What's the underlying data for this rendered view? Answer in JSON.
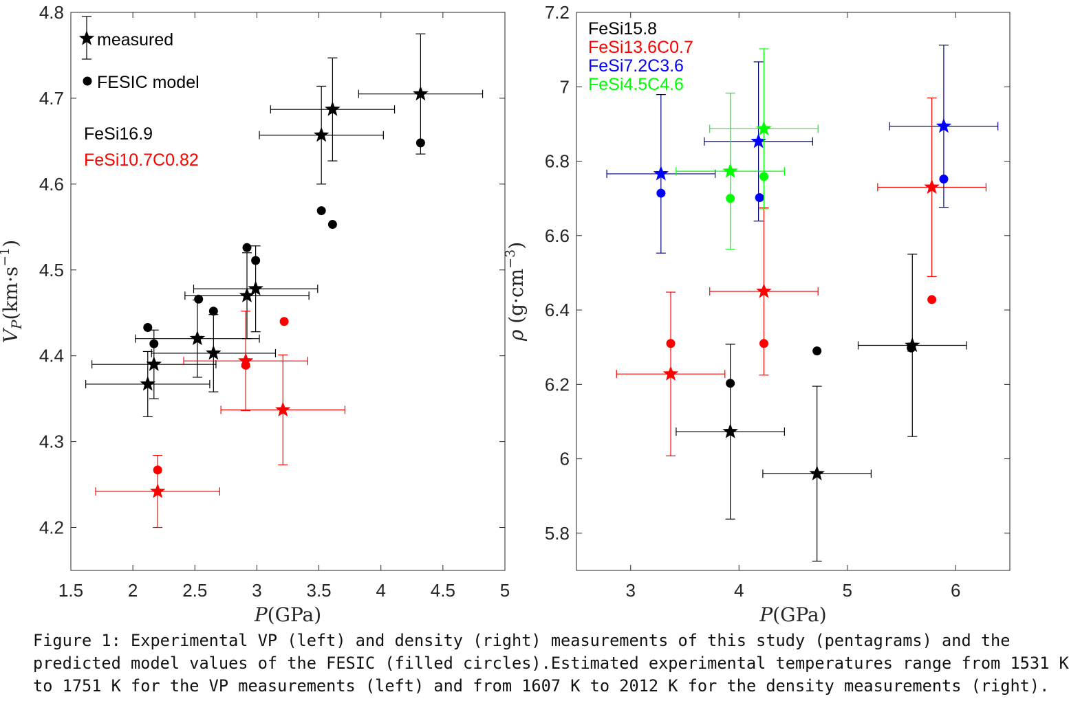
{
  "caption": {
    "line1": "Figure 1: Experimental VP (left) and density (right) measurements of this study (pentagrams) and the",
    "line2": "predicted model values of the FESIC (filled circles).Estimated experimental temperatures range from 1531 K",
    "line3": "to 1751 K for the VP measurements (left) and from 1607 K to 2012 K for the density measurements (right)."
  },
  "colors": {
    "FeSi16.9": "#000000",
    "FeSi10.7C0.82": "#ff0000",
    "FeSi15.8": "#000000",
    "FeSi13.6C0.7": "#ff0000",
    "FeSi7.2C3.6": "#0000ff",
    "FeSi4.5C4.6": "#00ff00",
    "FeSi7.2C3.6_errorbar": "#00007f"
  },
  "chart_data": [
    {
      "type": "scatter",
      "title": "",
      "xlabel": "P(GPa)",
      "ylabel": "V_P (km·s^-1)",
      "xlim": [
        1.5,
        5
      ],
      "ylim": [
        4.15,
        4.8
      ],
      "xticks": [
        1.5,
        2,
        2.5,
        3,
        3.5,
        4,
        4.5,
        5
      ],
      "yticks": [
        4.2,
        4.3,
        4.4,
        4.5,
        4.6,
        4.7,
        4.8
      ],
      "xtick_labels": [
        "1.5",
        "2",
        "2.5",
        "3",
        "3.5",
        "4",
        "4.5",
        "5"
      ],
      "ytick_labels": [
        "4.2",
        "4.3",
        "4.4",
        "4.5",
        "4.6",
        "4.7",
        "4.8"
      ],
      "grid": false,
      "legend": {
        "placement": "top-left",
        "markers": [
          {
            "symbol": "star",
            "label": "measured"
          },
          {
            "symbol": "circle",
            "label": "FESIC model"
          }
        ],
        "series_labels": [
          "FeSi16.9",
          "FeSi10.7C0.82"
        ]
      },
      "series": [
        {
          "name": "FeSi16.9",
          "measured": [
            {
              "x": 2.12,
              "y": 4.367,
              "xerr": 0.5,
              "yerr": 0.038
            },
            {
              "x": 2.17,
              "y": 4.39,
              "xerr": 0.5,
              "yerr": 0.04
            },
            {
              "x": 2.52,
              "y": 4.42,
              "xerr": 0.5,
              "yerr": 0.045
            },
            {
              "x": 2.65,
              "y": 4.403,
              "xerr": 0.5,
              "yerr": 0.045
            },
            {
              "x": 2.92,
              "y": 4.47,
              "xerr": 0.5,
              "yerr": 0.05
            },
            {
              "x": 2.99,
              "y": 4.478,
              "xerr": 0.5,
              "yerr": 0.05
            },
            {
              "x": 3.52,
              "y": 4.657,
              "xerr": 0.5,
              "yerr": 0.057
            },
            {
              "x": 3.61,
              "y": 4.687,
              "xerr": 0.5,
              "yerr": 0.06
            },
            {
              "x": 4.32,
              "y": 4.705,
              "xerr": 0.5,
              "yerr": 0.07
            }
          ],
          "model": [
            {
              "x": 2.12,
              "y": 4.433
            },
            {
              "x": 2.17,
              "y": 4.414
            },
            {
              "x": 2.53,
              "y": 4.466
            },
            {
              "x": 2.65,
              "y": 4.452
            },
            {
              "x": 2.92,
              "y": 4.526
            },
            {
              "x": 2.99,
              "y": 4.511
            },
            {
              "x": 3.52,
              "y": 4.569
            },
            {
              "x": 3.61,
              "y": 4.553
            },
            {
              "x": 4.32,
              "y": 4.648
            }
          ]
        },
        {
          "name": "FeSi10.7C0.82",
          "measured": [
            {
              "x": 2.2,
              "y": 4.242,
              "xerr": 0.5,
              "yerr": 0.042
            },
            {
              "x": 2.91,
              "y": 4.394,
              "xerr": 0.5,
              "yerr": 0.058
            },
            {
              "x": 3.21,
              "y": 4.337,
              "xerr": 0.5,
              "yerr": 0.064
            }
          ],
          "model": [
            {
              "x": 2.2,
              "y": 4.267
            },
            {
              "x": 2.91,
              "y": 4.389
            },
            {
              "x": 3.22,
              "y": 4.44
            }
          ]
        }
      ]
    },
    {
      "type": "scatter",
      "title": "",
      "xlabel": "P(GPa)",
      "ylabel": "ρ (g·cm^-3)",
      "xlim": [
        2.5,
        6.5
      ],
      "ylim": [
        5.7,
        7.2
      ],
      "xticks": [
        3,
        4,
        5,
        6
      ],
      "yticks": [
        5.8,
        6,
        6.2,
        6.4,
        6.6,
        6.8,
        7,
        7.2
      ],
      "xtick_labels": [
        "3",
        "4",
        "5",
        "6"
      ],
      "ytick_labels": [
        "5.8",
        "6",
        "6.2",
        "6.4",
        "6.6",
        "6.8",
        "7",
        "7.2"
      ],
      "grid": false,
      "legend": {
        "placement": "top-left",
        "series_labels": [
          "FeSi15.8",
          "FeSi13.6C0.7",
          "FeSi7.2C3.6",
          "FeSi4.5C4.6"
        ]
      },
      "series": [
        {
          "name": "FeSi15.8",
          "measured": [
            {
              "x": 3.92,
              "y": 6.073,
              "xerr": 0.5,
              "yerr": 0.235
            },
            {
              "x": 4.72,
              "y": 5.96,
              "xerr": 0.5,
              "yerr": 0.235
            },
            {
              "x": 5.6,
              "y": 6.305,
              "xerr": 0.5,
              "yerr": 0.245
            }
          ],
          "model": [
            {
              "x": 3.92,
              "y": 6.203
            },
            {
              "x": 4.72,
              "y": 6.29
            },
            {
              "x": 5.59,
              "y": 6.298
            }
          ]
        },
        {
          "name": "FeSi13.6C0.7",
          "measured": [
            {
              "x": 3.37,
              "y": 6.228,
              "xerr": 0.5,
              "yerr": 0.22
            },
            {
              "x": 4.23,
              "y": 6.45,
              "xerr": 0.5,
              "yerr": 0.225
            },
            {
              "x": 5.78,
              "y": 6.73,
              "xerr": 0.5,
              "yerr": 0.24
            }
          ],
          "model": [
            {
              "x": 3.37,
              "y": 6.31
            },
            {
              "x": 4.23,
              "y": 6.31
            },
            {
              "x": 5.78,
              "y": 6.428
            }
          ]
        },
        {
          "name": "FeSi7.2C3.6",
          "measured": [
            {
              "x": 3.28,
              "y": 6.766,
              "xerr": 0.5,
              "yerr": 0.213
            },
            {
              "x": 4.18,
              "y": 6.853,
              "xerr": 0.5,
              "yerr": 0.214
            },
            {
              "x": 5.89,
              "y": 6.894,
              "xerr": 0.5,
              "yerr": 0.218
            }
          ],
          "model": [
            {
              "x": 3.28,
              "y": 6.714
            },
            {
              "x": 4.19,
              "y": 6.702
            },
            {
              "x": 5.89,
              "y": 6.752
            }
          ]
        },
        {
          "name": "FeSi4.5C4.6",
          "measured": [
            {
              "x": 3.92,
              "y": 6.773,
              "xerr": 0.5,
              "yerr": 0.21
            },
            {
              "x": 4.23,
              "y": 6.887,
              "xerr": 0.5,
              "yerr": 0.215
            }
          ],
          "model": [
            {
              "x": 3.92,
              "y": 6.7
            },
            {
              "x": 4.23,
              "y": 6.759
            }
          ]
        }
      ]
    }
  ]
}
